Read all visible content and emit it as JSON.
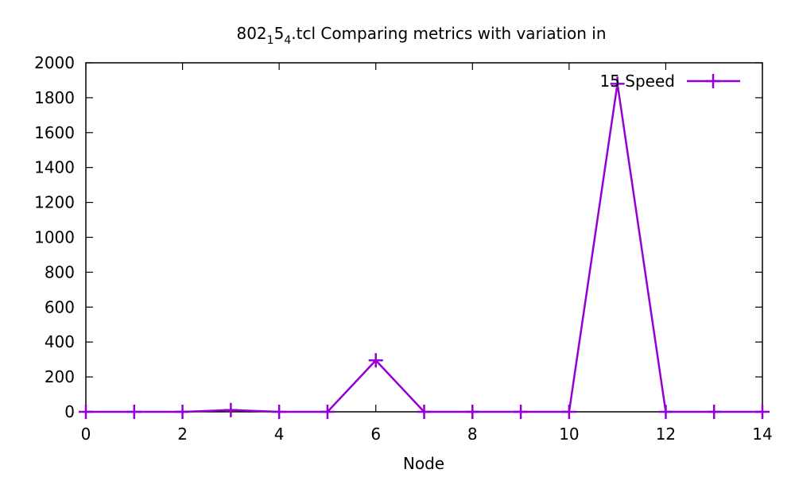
{
  "chart_data": {
    "type": "line",
    "title": {
      "prefix": "802",
      "sub1": "1",
      "mid": "5",
      "sub2": "4",
      "suffix": ".tcl Comparing metrics with variation in"
    },
    "xlabel": "Node",
    "ylabel": "",
    "xlim": [
      0,
      14
    ],
    "ylim": [
      0,
      2000
    ],
    "x_ticks": [
      0,
      2,
      4,
      6,
      8,
      10,
      12,
      14
    ],
    "y_ticks": [
      0,
      200,
      400,
      600,
      800,
      1000,
      1200,
      1400,
      1600,
      1800,
      2000
    ],
    "grid": false,
    "legend_position": "top-right",
    "series": [
      {
        "name": "15 Speed",
        "color": "#9400d3",
        "marker": "plus",
        "x": [
          0,
          1,
          2,
          3,
          4,
          5,
          6,
          7,
          8,
          9,
          10,
          11,
          12,
          13,
          14
        ],
        "y": [
          0,
          0,
          0,
          10,
          0,
          0,
          295,
          0,
          0,
          0,
          0,
          1880,
          0,
          0,
          0
        ]
      }
    ]
  }
}
